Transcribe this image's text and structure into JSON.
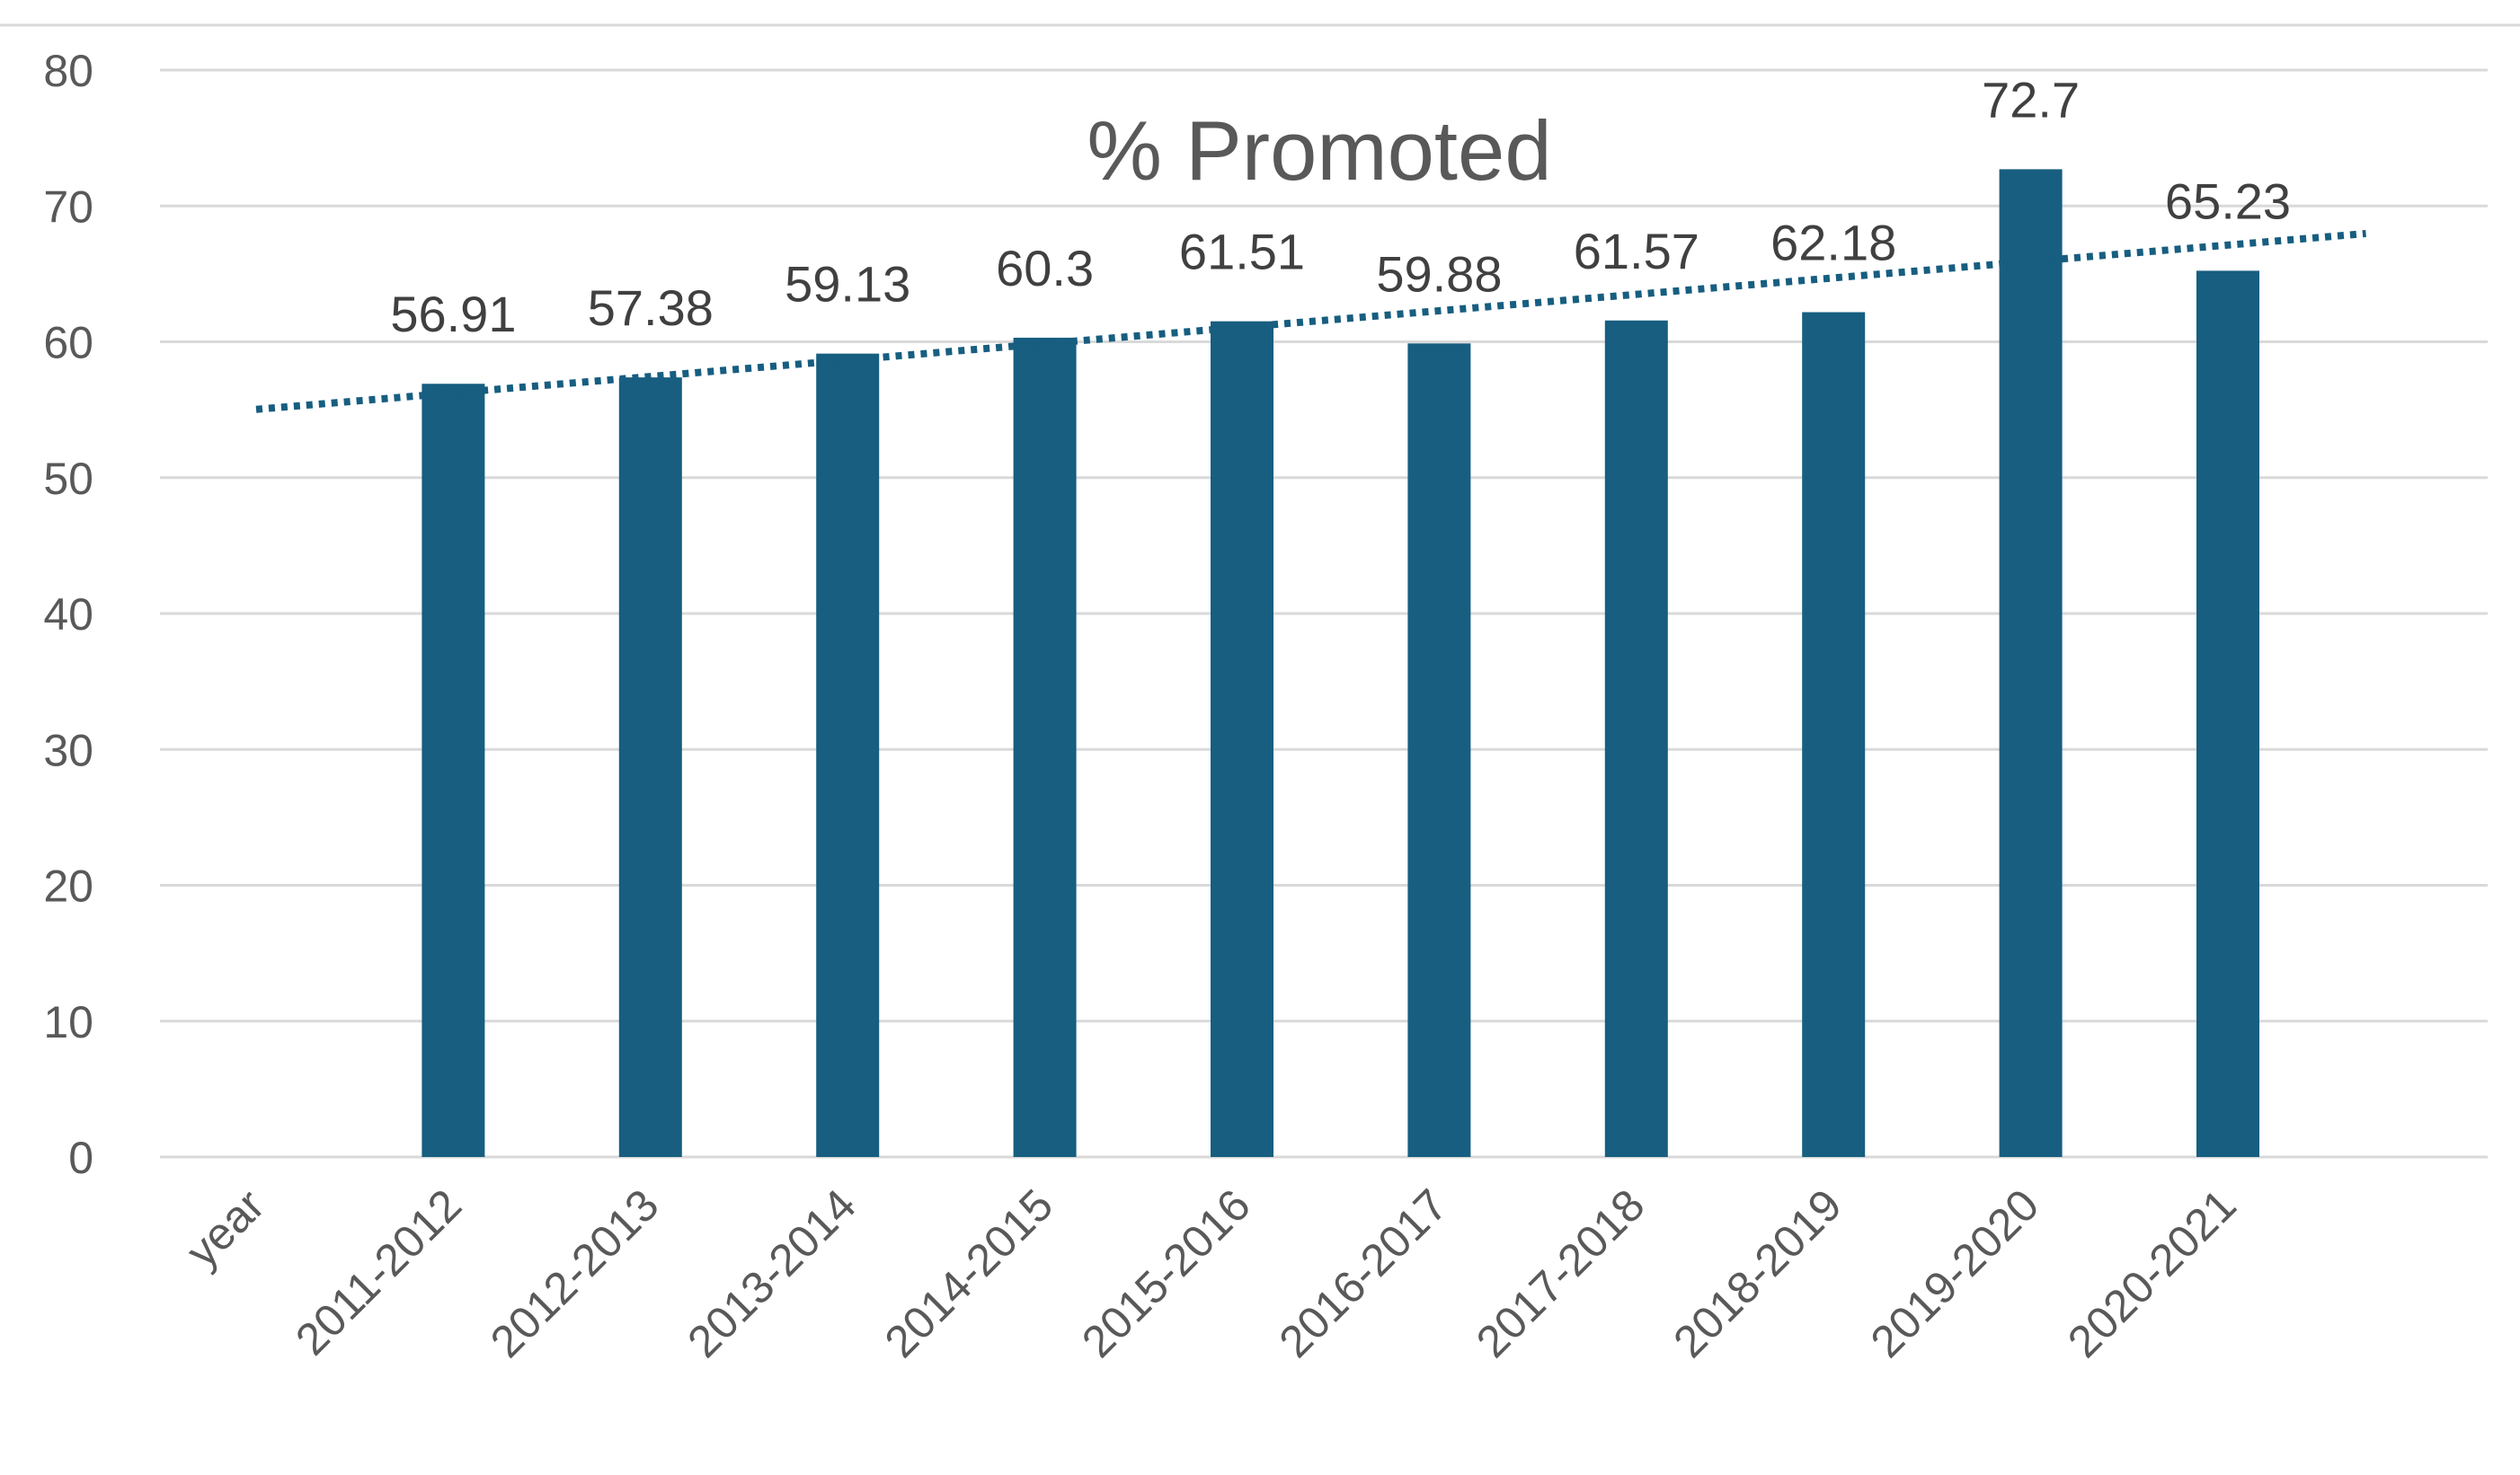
{
  "chart_data": {
    "type": "bar",
    "title": "% Promoted",
    "xlabel": "",
    "ylabel": "",
    "categories": [
      "year",
      "2011-2012",
      "2012-2013",
      "2013-2014",
      "2014-2015",
      "2015-2016",
      "2016-2017",
      "2017-2018",
      "2018-2019",
      "2019-2020",
      "2020-2021"
    ],
    "values": [
      null,
      56.91,
      57.38,
      59.13,
      60.3,
      61.51,
      59.88,
      61.57,
      62.18,
      72.7,
      65.23
    ],
    "data_labels": [
      "",
      "56.91",
      "57.38",
      "59.13",
      "60.3",
      "61.51",
      "59.88",
      "61.57",
      "62.18",
      "72.7",
      "65.23"
    ],
    "ylim": [
      0,
      80
    ],
    "yticks": [
      0,
      10,
      20,
      30,
      40,
      50,
      60,
      70,
      80
    ],
    "grid": true,
    "legend": "none",
    "trendline": {
      "type": "linear",
      "style": "dotted"
    },
    "colors": {
      "bar": "#175e80",
      "trendline": "#175e80",
      "grid": "#d9d9d9",
      "text": "#595959"
    }
  }
}
